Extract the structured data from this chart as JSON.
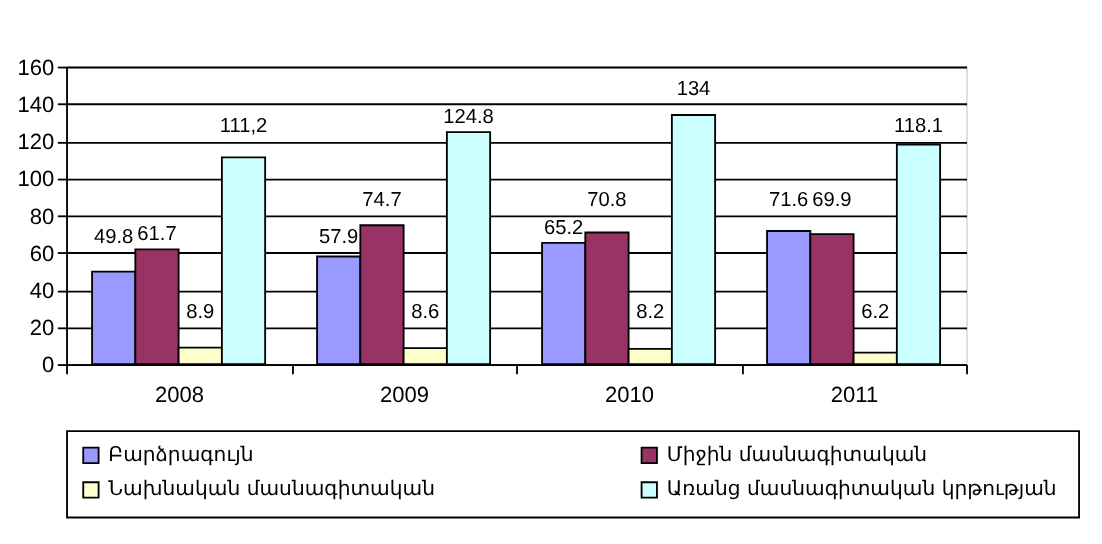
{
  "chart_data": {
    "type": "bar",
    "categories": [
      "2008",
      "2009",
      "2010",
      "2011"
    ],
    "series": [
      {
        "name": "Բարձրագույն",
        "color": "#9999ff",
        "values": [
          49.8,
          57.9,
          65.2,
          71.6
        ],
        "value_labels": [
          "49.8",
          "57.9",
          "65.2",
          "71.6"
        ]
      },
      {
        "name": "Միջին մասնագիտական",
        "color": "#993366",
        "values": [
          61.7,
          74.7,
          70.8,
          69.9
        ],
        "value_labels": [
          "61.7",
          "74.7",
          "70.8",
          "69.9"
        ]
      },
      {
        "name": "Նախնական մասնագիտական",
        "color": "#ffffcc",
        "values": [
          8.9,
          8.6,
          8.2,
          6.2
        ],
        "value_labels": [
          "8.9",
          "8.6",
          "8.2",
          "6.2"
        ]
      },
      {
        "name": "Առանց  մասնագիտական կրթության",
        "color": "#ccffff",
        "values": [
          111.2,
          124.8,
          134,
          118.1
        ],
        "value_labels": [
          "111,2",
          "124.8",
          "134",
          "118.1"
        ]
      }
    ],
    "ylim": [
      0,
      160
    ],
    "yticks": [
      0,
      20,
      40,
      60,
      80,
      100,
      120,
      140,
      160
    ],
    "grid": "y",
    "legend": "bottom"
  }
}
